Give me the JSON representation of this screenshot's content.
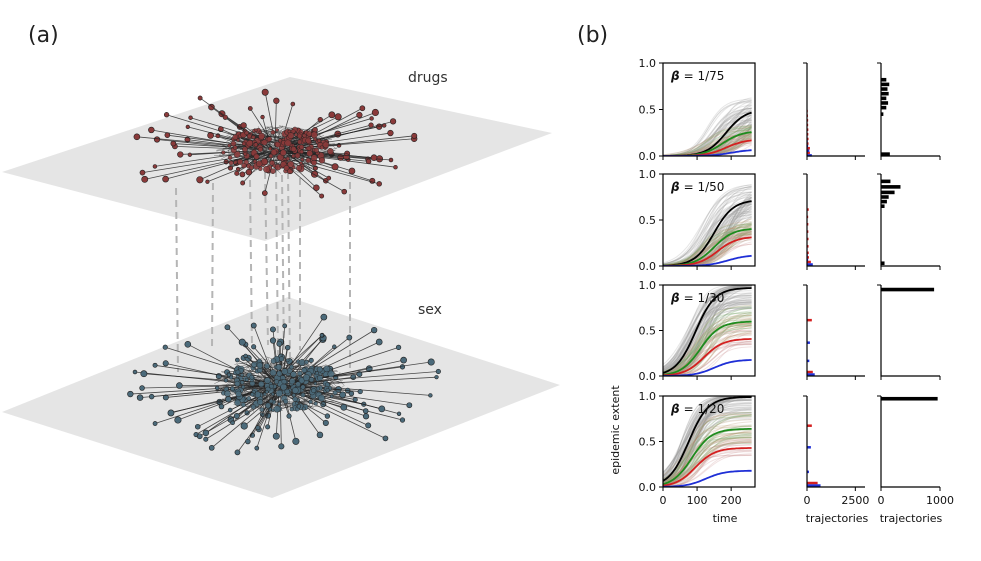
{
  "panel_a": {
    "label": "(a)",
    "layers": {
      "top": "drugs",
      "bottom": "sex"
    },
    "colors": {
      "plane": "#e5e5e5",
      "drugs_nodes": "#8a3a3a",
      "sex_nodes": "#4b6a7a",
      "edges": "#222222",
      "interlinks": "#b5b5b5"
    }
  },
  "panel_b": {
    "label": "(b)",
    "colors": {
      "gray_bundle": "#9a9a9a",
      "black": "#000000",
      "green": "#1e8c1e",
      "red": "#d42020",
      "blue": "#1f2fd6"
    },
    "chart_data": [
      {
        "type": "line",
        "title": "β = 1/75",
        "beta_symbol": "β",
        "beta_value": "= 1/75",
        "xlabel": "time",
        "ylabel": "epidemic extent",
        "xlim": [
          0,
          270
        ],
        "ylim": [
          0,
          1.0
        ],
        "xticks": [
          "0",
          "100",
          "200"
        ],
        "yticks": [
          "0.0",
          "0.5",
          "1.0"
        ],
        "series": [
          {
            "name": "black",
            "final": 0.5,
            "t50": 185
          },
          {
            "name": "green",
            "final": 0.27,
            "t50": 175
          },
          {
            "name": "red",
            "final": 0.18,
            "t50": 185
          },
          {
            "name": "blue",
            "final": 0.07,
            "t50": 200
          }
        ],
        "hist_mid": {
          "xlim": [
            0,
            3000
          ],
          "xticks": [
            "0",
            "2500"
          ],
          "bars": [
            {
              "y": 0.02,
              "red": 150,
              "blue": 250
            },
            {
              "y": 0.07,
              "red": 150,
              "blue": 120
            },
            {
              "y": 0.12,
              "red": 80,
              "blue": 60
            },
            {
              "y": 0.17,
              "red": 80,
              "blue": 40
            },
            {
              "y": 0.22,
              "red": 70,
              "blue": 30
            },
            {
              "y": 0.27,
              "red": 70,
              "blue": 20
            },
            {
              "y": 0.32,
              "red": 60,
              "blue": 10
            },
            {
              "y": 0.37,
              "red": 60,
              "blue": 0
            },
            {
              "y": 0.42,
              "red": 50,
              "blue": 0
            },
            {
              "y": 0.47,
              "red": 40,
              "blue": 0
            }
          ]
        },
        "hist_right": {
          "xlim": [
            0,
            1000
          ],
          "xticks": [
            "0",
            "1000"
          ],
          "bars": [
            {
              "y": 0.02,
              "v": 150
            },
            {
              "y": 0.45,
              "v": 40
            },
            {
              "y": 0.52,
              "v": 90
            },
            {
              "y": 0.57,
              "v": 120
            },
            {
              "y": 0.62,
              "v": 90
            },
            {
              "y": 0.67,
              "v": 130
            },
            {
              "y": 0.72,
              "v": 110
            },
            {
              "y": 0.77,
              "v": 140
            },
            {
              "y": 0.82,
              "v": 90
            }
          ]
        }
      },
      {
        "type": "line",
        "title": "β = 1/50",
        "beta_symbol": "β",
        "beta_value": "= 1/50",
        "xlabel": "time",
        "ylabel": "epidemic extent",
        "xlim": [
          0,
          270
        ],
        "ylim": [
          0,
          1.0
        ],
        "xticks": [
          "0",
          "100",
          "200"
        ],
        "yticks": [
          "0.0",
          "0.5",
          "1.0"
        ],
        "series": [
          {
            "name": "black",
            "final": 0.72,
            "t50": 150
          },
          {
            "name": "green",
            "final": 0.41,
            "t50": 150
          },
          {
            "name": "red",
            "final": 0.32,
            "t50": 160
          },
          {
            "name": "blue",
            "final": 0.12,
            "t50": 190
          }
        ],
        "hist_mid": {
          "xlim": [
            0,
            3000
          ],
          "xticks": [
            "0",
            "2500"
          ],
          "bars": [
            {
              "y": 0.03,
              "red": 200,
              "blue": 300
            },
            {
              "y": 0.08,
              "red": 100,
              "blue": 60
            },
            {
              "y": 0.13,
              "red": 90,
              "blue": 40
            },
            {
              "y": 0.2,
              "red": 80,
              "blue": 30
            },
            {
              "y": 0.28,
              "red": 80,
              "blue": 20
            },
            {
              "y": 0.36,
              "red": 70,
              "blue": 10
            },
            {
              "y": 0.44,
              "red": 70,
              "blue": 0
            },
            {
              "y": 0.52,
              "red": 60,
              "blue": 0
            },
            {
              "y": 0.6,
              "red": 90,
              "blue": 0
            }
          ]
        },
        "hist_right": {
          "xlim": [
            0,
            1000
          ],
          "xticks": [
            "0",
            "1000"
          ],
          "bars": [
            {
              "y": 0.03,
              "v": 60
            },
            {
              "y": 0.65,
              "v": 60
            },
            {
              "y": 0.7,
              "v": 100
            },
            {
              "y": 0.75,
              "v": 130
            },
            {
              "y": 0.8,
              "v": 230
            },
            {
              "y": 0.86,
              "v": 330
            },
            {
              "y": 0.92,
              "v": 160
            }
          ]
        }
      },
      {
        "type": "line",
        "title": "β = 1/30",
        "beta_symbol": "β",
        "beta_value": "= 1/30",
        "xlabel": "time",
        "ylabel": "epidemic extent",
        "xlim": [
          0,
          270
        ],
        "ylim": [
          0,
          1.0
        ],
        "xticks": [
          "0",
          "100",
          "200"
        ],
        "yticks": [
          "0.0",
          "0.5",
          "1.0"
        ],
        "series": [
          {
            "name": "black",
            "final": 0.97,
            "t50": 95
          },
          {
            "name": "green",
            "final": 0.6,
            "t50": 110
          },
          {
            "name": "red",
            "final": 0.41,
            "t50": 120
          },
          {
            "name": "blue",
            "final": 0.18,
            "t50": 150
          }
        ],
        "hist_mid": {
          "xlim": [
            0,
            3000
          ],
          "xticks": [
            "0",
            "2500"
          ],
          "bars": [
            {
              "y": 0.03,
              "red": 300,
              "blue": 400
            },
            {
              "y": 0.18,
              "red": 0,
              "blue": 120
            },
            {
              "y": 0.38,
              "red": 0,
              "blue": 150
            },
            {
              "y": 0.6,
              "red": 250,
              "blue": 0
            }
          ]
        },
        "hist_right": {
          "xlim": [
            0,
            1000
          ],
          "xticks": [
            "0",
            "1000"
          ],
          "bars": [
            {
              "y": 0.03,
              "v": 10
            },
            {
              "y": 0.95,
              "v": 900
            }
          ]
        }
      },
      {
        "type": "line",
        "title": "β = 1/20",
        "beta_symbol": "β",
        "beta_value": "= 1/20",
        "xlabel": "time",
        "ylabel": "epidemic extent",
        "xlim": [
          0,
          270
        ],
        "ylim": [
          0,
          1.0
        ],
        "xticks": [
          "0",
          "100",
          "200"
        ],
        "yticks": [
          "0.0",
          "0.5",
          "1.0"
        ],
        "series": [
          {
            "name": "black",
            "final": 0.99,
            "t50": 75
          },
          {
            "name": "green",
            "final": 0.64,
            "t50": 85
          },
          {
            "name": "red",
            "final": 0.43,
            "t50": 95
          },
          {
            "name": "blue",
            "final": 0.18,
            "t50": 125
          }
        ],
        "hist_mid": {
          "xlim": [
            0,
            3000
          ],
          "xticks": [
            "0",
            "2500"
          ],
          "bars": [
            {
              "y": 0.03,
              "red": 550,
              "blue": 700
            },
            {
              "y": 0.18,
              "red": 0,
              "blue": 100
            },
            {
              "y": 0.45,
              "red": 0,
              "blue": 200
            },
            {
              "y": 0.66,
              "red": 250,
              "blue": 0
            }
          ]
        },
        "hist_right": {
          "xlim": [
            0,
            1000
          ],
          "xticks": [
            "0",
            "1000"
          ],
          "bars": [
            {
              "y": 0.97,
              "v": 960
            }
          ]
        }
      }
    ],
    "axes_text": {
      "xlabel_time": "time",
      "xlabel_mid": "trajectories",
      "xlabel_right": "trajectories",
      "ylabel": "epidemic extent"
    }
  }
}
